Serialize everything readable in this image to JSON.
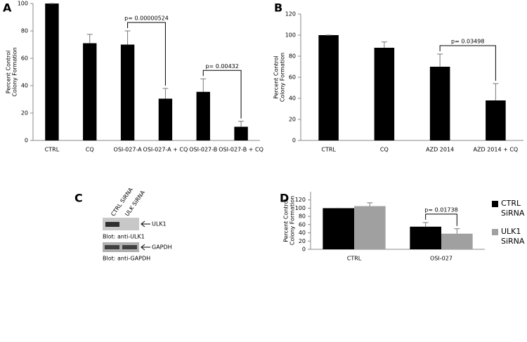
{
  "chart_data": [
    {
      "type": "bar",
      "panel_label": "A",
      "ylabel": [
        "Percent Control",
        "Colony Formation"
      ],
      "categories": [
        "CTRL",
        "CQ",
        "OSI-027-A",
        "OSI-027-A + CQ",
        "OSI-027-B",
        "OSI-027-B + CQ"
      ],
      "values": [
        100,
        71,
        70,
        30.5,
        35.5,
        10
      ],
      "errors": [
        0,
        6.5,
        10,
        7.5,
        9.5,
        4
      ],
      "color": "#000000",
      "ylim": [
        0,
        100
      ],
      "yticks": [
        0,
        20,
        40,
        60,
        80,
        100
      ],
      "annotations": [
        {
          "text": "p= 0.00000524",
          "between": [
            "OSI-027-A",
            "OSI-027-A + CQ"
          ]
        },
        {
          "text": "p= 0.00432",
          "between": [
            "OSI-027-B",
            "OSI-027-B + CQ"
          ]
        }
      ]
    },
    {
      "type": "bar",
      "panel_label": "B",
      "ylabel": [
        "Percent Control",
        "Colony Formation"
      ],
      "categories": [
        "CTRL",
        "CQ",
        "AZD 2014",
        "AZD 2014 + CQ"
      ],
      "values": [
        100,
        88,
        70,
        38
      ],
      "errors": [
        0,
        5.5,
        12,
        16
      ],
      "color": "#000000",
      "ylim": [
        0,
        120
      ],
      "yticks": [
        0,
        20,
        40,
        60,
        80,
        100,
        120
      ],
      "annotations": [
        {
          "text": "p= 0.03498",
          "between": [
            "AZD 2014",
            "AZD 2014 + CQ"
          ]
        }
      ]
    },
    {
      "type": "grouped-bar",
      "panel_label": "D",
      "ylabel": [
        "Percent Control",
        "Colony Formation"
      ],
      "categories": [
        "CTRL",
        "OSI-027"
      ],
      "series": [
        {
          "name": "CTRL SiRNA",
          "color": "#000000",
          "values": [
            100,
            55
          ],
          "errors": [
            0,
            10
          ]
        },
        {
          "name": "ULK1 SiRNA",
          "color": "#a0a0a0",
          "values": [
            105,
            38
          ],
          "errors": [
            8,
            12
          ]
        }
      ],
      "ylim": [
        0,
        140
      ],
      "yticks": [
        0,
        20,
        40,
        60,
        80,
        100,
        120
      ],
      "annotations": [
        {
          "text": "p= 0.01738",
          "category": "OSI-027"
        }
      ]
    }
  ],
  "blot": {
    "panel_label": "C",
    "lanes": [
      "CTRL SiRNA",
      "ULK SiRNA"
    ],
    "rows": [
      {
        "band": "ULK1",
        "caption": "Blot: anti-ULK1"
      },
      {
        "band": "GAPDH",
        "caption": "Blot: anti-GAPDH"
      }
    ]
  }
}
